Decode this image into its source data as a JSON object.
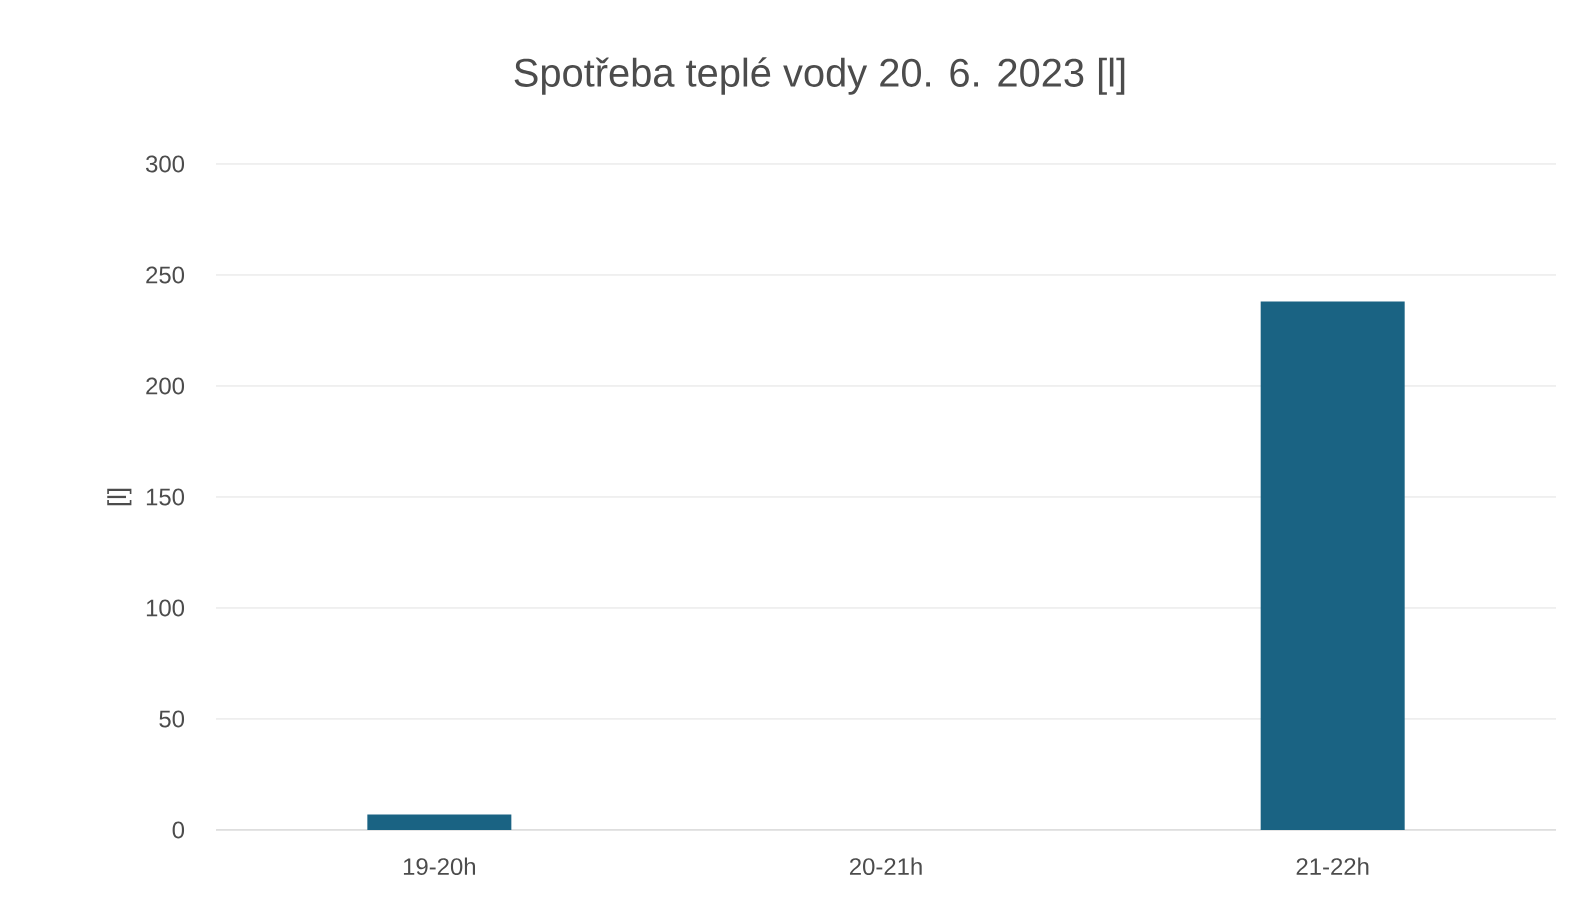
{
  "chart_data": {
    "type": "bar",
    "title": "Spotřeba teplé vody 20. 6. 2023 [l]",
    "ylabel": "[l]",
    "categories": [
      "19-20h",
      "20-21h",
      "21-22h"
    ],
    "values": [
      7,
      0,
      238
    ],
    "color": "#1a6383",
    "ylim": [
      0,
      300
    ],
    "yticks": [
      0,
      50,
      100,
      150,
      200,
      250,
      300
    ],
    "grid": "y"
  }
}
